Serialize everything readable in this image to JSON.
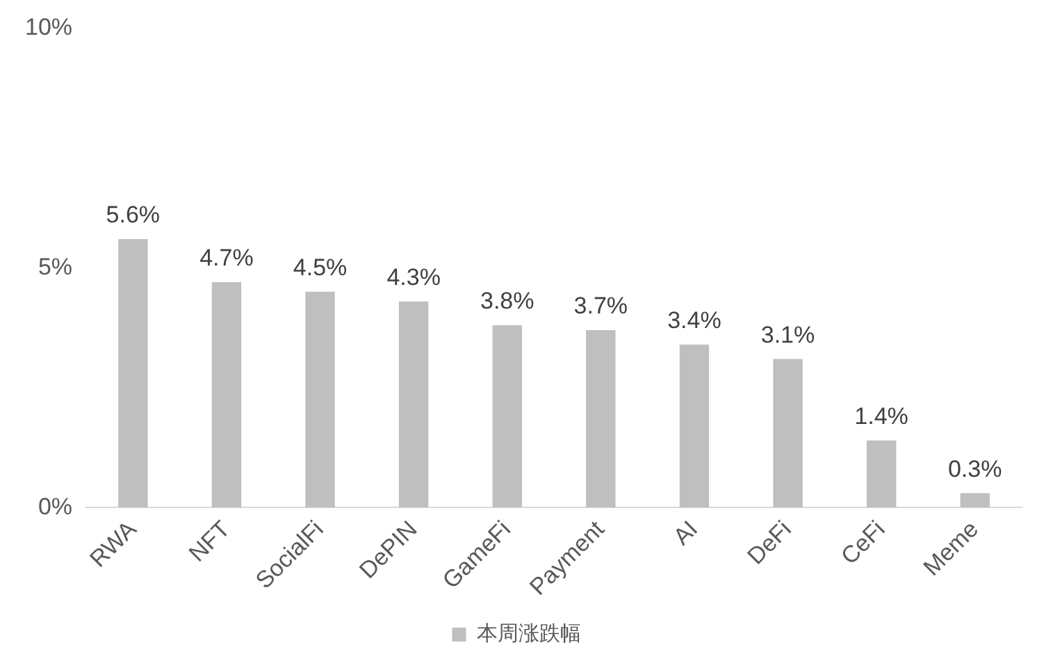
{
  "chart_data": {
    "type": "bar",
    "categories": [
      "RWA",
      "NFT",
      "SocialFi",
      "DePIN",
      "GameFi",
      "Payment",
      "AI",
      "DeFi",
      "CeFi",
      "Meme"
    ],
    "series": [
      {
        "name": "本周涨跌幅",
        "color": "#bfbfbf",
        "values": [
          5.6,
          4.7,
          4.5,
          4.3,
          3.8,
          3.7,
          3.4,
          3.1,
          1.4,
          0.3
        ],
        "value_labels": [
          "5.6%",
          "4.7%",
          "4.5%",
          "4.3%",
          "3.8%",
          "3.7%",
          "3.4%",
          "3.1%",
          "1.4%",
          "0.3%"
        ]
      }
    ],
    "ylim": [
      0,
      10
    ],
    "yticks": [
      {
        "value": 0,
        "label": "0%"
      },
      {
        "value": 5,
        "label": "5%"
      },
      {
        "value": 10,
        "label": "10%"
      }
    ],
    "grid": false,
    "legend": "bottom"
  }
}
